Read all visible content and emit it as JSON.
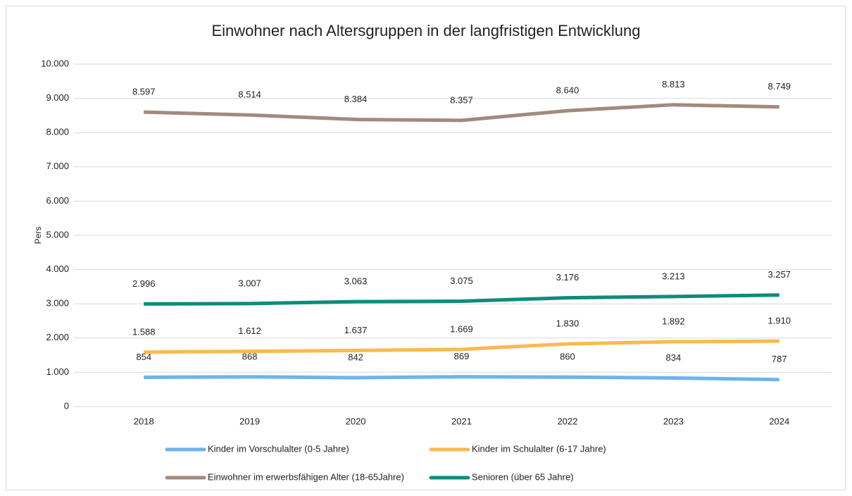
{
  "chart_data": {
    "type": "line",
    "title": "Einwohner nach Altersgruppen in der langfristigen Entwicklung",
    "y_label": "Pers",
    "categories": [
      "2018",
      "2019",
      "2020",
      "2021",
      "2022",
      "2023",
      "2024"
    ],
    "series": [
      {
        "name": "Kinder im Vorschulalter (0-5 Jahre)",
        "color": "#6cb4ee",
        "values": [
          854,
          868,
          842,
          869,
          860,
          834,
          787
        ]
      },
      {
        "name": "Kinder im Schulalter (6-17 Jahre)",
        "color": "#fbb94f",
        "values": [
          1588,
          1612,
          1637,
          1669,
          1830,
          1892,
          1910
        ],
        "value_labels": [
          "1.588",
          "1.612",
          "1.637",
          "1.669",
          "1.830",
          "1.892",
          "1.910"
        ]
      },
      {
        "name": "Einwohner im erwerbsfähigen Alter (18-65Jahre)",
        "color": "#a28a7f",
        "values": [
          8597,
          8514,
          8384,
          8357,
          8640,
          8813,
          8749
        ],
        "value_labels": [
          "8.597",
          "8.514",
          "8.384",
          "8.357",
          "8.640",
          "8.813",
          "8.749"
        ]
      },
      {
        "name": "Senioren (über 65 Jahre)",
        "color": "#0e8c7a",
        "values": [
          2996,
          3007,
          3063,
          3075,
          3176,
          3213,
          3257
        ],
        "value_labels": [
          "2.996",
          "3.007",
          "3.063",
          "3.075",
          "3.176",
          "3.213",
          "3.257"
        ]
      }
    ],
    "ylim": [
      0,
      10000
    ],
    "yticks": [
      0,
      {
        "value": 1000,
        "label": "1.000"
      },
      {
        "value": 2000,
        "label": "2.000"
      },
      {
        "value": 3000,
        "label": "3.000"
      },
      {
        "value": 4000,
        "label": "4.000"
      },
      {
        "value": 5000,
        "label": "5.000"
      },
      {
        "value": 6000,
        "label": "6.000"
      },
      {
        "value": 7000,
        "label": "7.000"
      },
      {
        "value": 8000,
        "label": "8.000"
      },
      {
        "value": 9000,
        "label": "9.000"
      },
      {
        "value": 10000,
        "label": "10.000"
      }
    ],
    "grid": true
  }
}
